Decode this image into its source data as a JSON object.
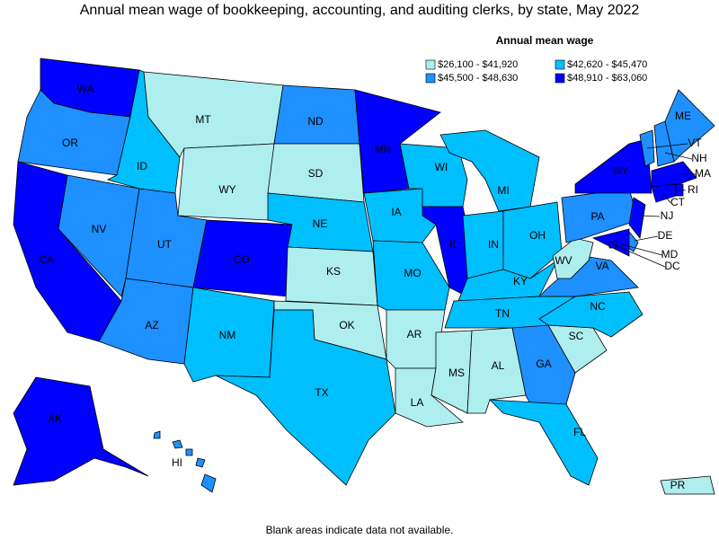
{
  "title": "Annual mean wage of bookkeeping, accounting, and auditing clerks, by state, May 2022",
  "legend": {
    "title": "Annual mean wage",
    "items": [
      {
        "label": "$26,100 - $41,920",
        "color": "#afeeee"
      },
      {
        "label": "$42,620 - $45,470",
        "color": "#00bfff"
      },
      {
        "label": "$45,500 - $48,630",
        "color": "#1e90ff"
      },
      {
        "label": "$48,910 - $63,060",
        "color": "#0000ff"
      }
    ]
  },
  "states": [
    {
      "abbr": "WA",
      "color": "#0000ff"
    },
    {
      "abbr": "OR",
      "color": "#1e90ff"
    },
    {
      "abbr": "CA",
      "color": "#0000ff"
    },
    {
      "abbr": "NV",
      "color": "#1e90ff"
    },
    {
      "abbr": "ID",
      "color": "#00bfff"
    },
    {
      "abbr": "MT",
      "color": "#afeeee"
    },
    {
      "abbr": "WY",
      "color": "#afeeee"
    },
    {
      "abbr": "UT",
      "color": "#1e90ff"
    },
    {
      "abbr": "AZ",
      "color": "#1e90ff"
    },
    {
      "abbr": "CO",
      "color": "#0000ff"
    },
    {
      "abbr": "NM",
      "color": "#00bfff"
    },
    {
      "abbr": "ND",
      "color": "#1e90ff"
    },
    {
      "abbr": "SD",
      "color": "#afeeee"
    },
    {
      "abbr": "NE",
      "color": "#00bfff"
    },
    {
      "abbr": "KS",
      "color": "#afeeee"
    },
    {
      "abbr": "OK",
      "color": "#afeeee"
    },
    {
      "abbr": "TX",
      "color": "#00bfff"
    },
    {
      "abbr": "MN",
      "color": "#0000ff"
    },
    {
      "abbr": "IA",
      "color": "#00bfff"
    },
    {
      "abbr": "MO",
      "color": "#00bfff"
    },
    {
      "abbr": "AR",
      "color": "#afeeee"
    },
    {
      "abbr": "LA",
      "color": "#afeeee"
    },
    {
      "abbr": "WI",
      "color": "#00bfff"
    },
    {
      "abbr": "IL",
      "color": "#0000ff"
    },
    {
      "abbr": "MI",
      "color": "#00bfff"
    },
    {
      "abbr": "IN",
      "color": "#00bfff"
    },
    {
      "abbr": "OH",
      "color": "#00bfff"
    },
    {
      "abbr": "KY",
      "color": "#00bfff"
    },
    {
      "abbr": "TN",
      "color": "#00bfff"
    },
    {
      "abbr": "MS",
      "color": "#afeeee"
    },
    {
      "abbr": "AL",
      "color": "#afeeee"
    },
    {
      "abbr": "GA",
      "color": "#1e90ff"
    },
    {
      "abbr": "FL",
      "color": "#00bfff"
    },
    {
      "abbr": "SC",
      "color": "#afeeee"
    },
    {
      "abbr": "NC",
      "color": "#00bfff"
    },
    {
      "abbr": "VA",
      "color": "#1e90ff"
    },
    {
      "abbr": "WV",
      "color": "#afeeee"
    },
    {
      "abbr": "PA",
      "color": "#1e90ff"
    },
    {
      "abbr": "NY",
      "color": "#0000ff"
    },
    {
      "abbr": "NJ",
      "color": "#0000ff"
    },
    {
      "abbr": "DE",
      "color": "#1e90ff"
    },
    {
      "abbr": "MD",
      "color": "#0000ff"
    },
    {
      "abbr": "DC",
      "color": "#0000ff"
    },
    {
      "abbr": "VT",
      "color": "#1e90ff"
    },
    {
      "abbr": "NH",
      "color": "#1e90ff"
    },
    {
      "abbr": "ME",
      "color": "#1e90ff"
    },
    {
      "abbr": "MA",
      "color": "#0000ff"
    },
    {
      "abbr": "RI",
      "color": "#0000ff"
    },
    {
      "abbr": "CT",
      "color": "#0000ff"
    },
    {
      "abbr": "AK",
      "color": "#0000ff"
    },
    {
      "abbr": "HI",
      "color": "#1e90ff"
    },
    {
      "abbr": "PR",
      "color": "#afeeee"
    }
  ],
  "footnote": "Blank areas indicate data not available."
}
